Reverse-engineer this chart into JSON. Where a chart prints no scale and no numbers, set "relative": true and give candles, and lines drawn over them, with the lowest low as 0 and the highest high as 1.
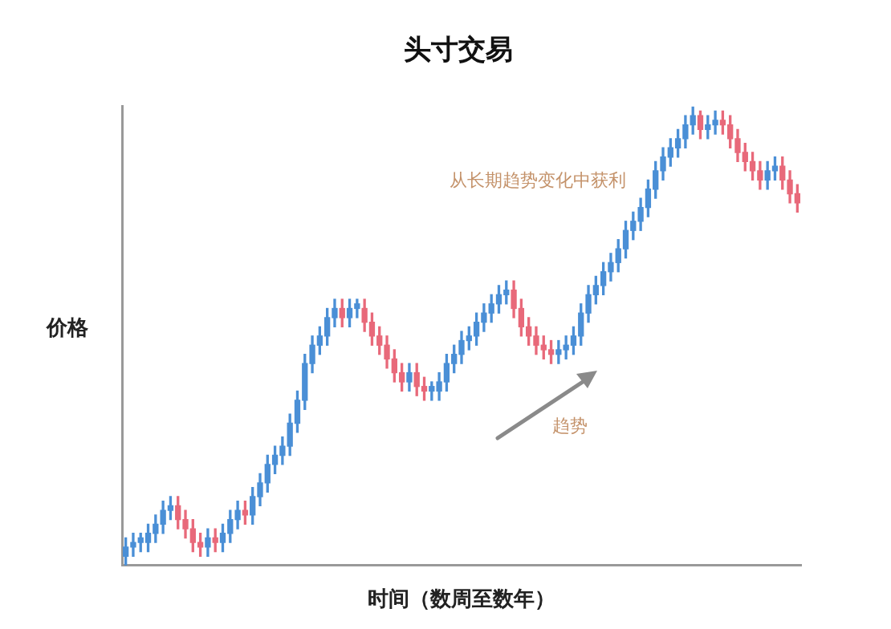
{
  "chart_data": {
    "type": "candlestick",
    "title": "头寸交易",
    "xlabel": "时间（数周至数年）",
    "ylabel": "价格",
    "relative": true,
    "annotations": [
      "从长期趋势变化中获利",
      "趋势"
    ],
    "colors": [
      "#4a8fd6",
      "#4a8fd6",
      "#4a8fd6",
      "#4a8fd6",
      "#4a8fd6",
      "#4a8fd6",
      "#4a8fd6",
      "#e8697a",
      "#e8697a",
      "#e8697a",
      "#e8697a",
      "#4a8fd6",
      "#e8697a",
      "#4a8fd6",
      "#4a8fd6",
      "#4a8fd6",
      "#e8697a",
      "#4a8fd6",
      "#4a8fd6",
      "#4a8fd6",
      "#4a8fd6",
      "#4a8fd6",
      "#4a8fd6",
      "#4a8fd6",
      "#4a8fd6",
      "#4a8fd6",
      "#4a8fd6",
      "#4a8fd6",
      "#4a8fd6",
      "#e8697a",
      "#4a8fd6",
      "#4a8fd6",
      "#e8697a",
      "#e8697a",
      "#e8697a",
      "#e8697a",
      "#e8697a",
      "#e8697a",
      "#4a8fd6",
      "#e8697a",
      "#e8697a",
      "#4a8fd6",
      "#4a8fd6",
      "#4a8fd6",
      "#4a8fd6",
      "#4a8fd6",
      "#4a8fd6",
      "#4a8fd6",
      "#4a8fd6",
      "#4a8fd6",
      "#4a8fd6",
      "#4a8fd6",
      "#e8697a",
      "#e8697a",
      "#e8697a",
      "#e8697a",
      "#e8697a",
      "#e8697a",
      "#4a8fd6",
      "#4a8fd6",
      "#4a8fd6",
      "#4a8fd6",
      "#4a8fd6",
      "#4a8fd6",
      "#4a8fd6",
      "#4a8fd6",
      "#4a8fd6",
      "#4a8fd6",
      "#4a8fd6",
      "#4a8fd6",
      "#4a8fd6",
      "#4a8fd6",
      "#4a8fd6",
      "#4a8fd6",
      "#4a8fd6",
      "#4a8fd6",
      "#4a8fd6",
      "#e8697a",
      "#4a8fd6",
      "#4a8fd6",
      "#e8697a",
      "#e8697a",
      "#e8697a",
      "#e8697a",
      "#e8697a",
      "#e8697a",
      "#4a8fd6",
      "#4a8fd6",
      "#e8697a",
      "#e8697a",
      "#e8697a"
    ],
    "categories": [
      null,
      null,
      null,
      null,
      null,
      null,
      null,
      null,
      null,
      null,
      null,
      null,
      null,
      null,
      null,
      null,
      null,
      null,
      null,
      null,
      null,
      null,
      null,
      null,
      null,
      null,
      null,
      null,
      null,
      null,
      null,
      null,
      null,
      null,
      null,
      null,
      null,
      null,
      null,
      null,
      null,
      null,
      null,
      null,
      null,
      null,
      null,
      null,
      null,
      null,
      null,
      null,
      null,
      null,
      null,
      null,
      null,
      null,
      null,
      null,
      null,
      null,
      null,
      null,
      null,
      null,
      null,
      null,
      null,
      null,
      null,
      null,
      null,
      null,
      null,
      null,
      null,
      null,
      null,
      null,
      null,
      null,
      null,
      null,
      null,
      null,
      null,
      null,
      null,
      null,
      null
    ],
    "ohlc": [
      [
        0.02,
        0.06,
        0,
        0.04
      ],
      [
        0.04,
        0.07,
        0.02,
        0.05
      ],
      [
        0.05,
        0.07,
        0.03,
        0.06
      ],
      [
        0.05,
        0.09,
        0.03,
        0.07
      ],
      [
        0.07,
        0.11,
        0.05,
        0.09
      ],
      [
        0.09,
        0.14,
        0.07,
        0.12
      ],
      [
        0.12,
        0.15,
        0.1,
        0.13
      ],
      [
        0.13,
        0.15,
        0.08,
        0.1
      ],
      [
        0.1,
        0.12,
        0.06,
        0.08
      ],
      [
        0.08,
        0.1,
        0.03,
        0.05
      ],
      [
        0.05,
        0.07,
        0.02,
        0.04
      ],
      [
        0.04,
        0.08,
        0.02,
        0.06
      ],
      [
        0.06,
        0.08,
        0.03,
        0.05
      ],
      [
        0.05,
        0.09,
        0.03,
        0.07
      ],
      [
        0.07,
        0.12,
        0.05,
        0.1
      ],
      [
        0.1,
        0.14,
        0.08,
        0.12
      ],
      [
        0.12,
        0.14,
        0.09,
        0.11
      ],
      [
        0.11,
        0.17,
        0.09,
        0.15
      ],
      [
        0.15,
        0.2,
        0.13,
        0.18
      ],
      [
        0.18,
        0.24,
        0.16,
        0.22
      ],
      [
        0.22,
        0.26,
        0.2,
        0.24
      ],
      [
        0.24,
        0.28,
        0.22,
        0.26
      ],
      [
        0.26,
        0.33,
        0.24,
        0.31
      ],
      [
        0.31,
        0.38,
        0.29,
        0.36
      ],
      [
        0.36,
        0.46,
        0.34,
        0.44
      ],
      [
        0.44,
        0.5,
        0.42,
        0.48
      ],
      [
        0.48,
        0.52,
        0.46,
        0.5
      ],
      [
        0.5,
        0.56,
        0.48,
        0.54
      ],
      [
        0.54,
        0.58,
        0.52,
        0.56
      ],
      [
        0.56,
        0.58,
        0.52,
        0.54
      ],
      [
        0.54,
        0.58,
        0.52,
        0.56
      ],
      [
        0.56,
        0.58,
        0.54,
        0.57
      ],
      [
        0.56,
        0.58,
        0.51,
        0.53
      ],
      [
        0.53,
        0.55,
        0.48,
        0.5
      ],
      [
        0.5,
        0.52,
        0.46,
        0.48
      ],
      [
        0.48,
        0.5,
        0.43,
        0.45
      ],
      [
        0.45,
        0.47,
        0.4,
        0.42
      ],
      [
        0.42,
        0.44,
        0.38,
        0.4
      ],
      [
        0.4,
        0.44,
        0.38,
        0.42
      ],
      [
        0.42,
        0.44,
        0.37,
        0.39
      ],
      [
        0.39,
        0.41,
        0.36,
        0.38
      ],
      [
        0.38,
        0.4,
        0.36,
        0.39
      ],
      [
        0.38,
        0.42,
        0.36,
        0.4
      ],
      [
        0.4,
        0.46,
        0.38,
        0.44
      ],
      [
        0.44,
        0.48,
        0.42,
        0.46
      ],
      [
        0.46,
        0.51,
        0.44,
        0.49
      ],
      [
        0.49,
        0.52,
        0.47,
        0.5
      ],
      [
        0.5,
        0.55,
        0.48,
        0.53
      ],
      [
        0.53,
        0.57,
        0.51,
        0.55
      ],
      [
        0.55,
        0.59,
        0.53,
        0.57
      ],
      [
        0.57,
        0.61,
        0.55,
        0.59
      ],
      [
        0.59,
        0.62,
        0.57,
        0.6
      ],
      [
        0.6,
        0.62,
        0.54,
        0.56
      ],
      [
        0.56,
        0.58,
        0.5,
        0.52
      ],
      [
        0.52,
        0.54,
        0.48,
        0.5
      ],
      [
        0.5,
        0.52,
        0.46,
        0.48
      ],
      [
        0.48,
        0.5,
        0.45,
        0.47
      ],
      [
        0.47,
        0.49,
        0.44,
        0.46
      ],
      [
        0.46,
        0.49,
        0.44,
        0.47
      ],
      [
        0.47,
        0.5,
        0.45,
        0.48
      ],
      [
        0.48,
        0.52,
        0.46,
        0.5
      ],
      [
        0.5,
        0.57,
        0.48,
        0.55
      ],
      [
        0.55,
        0.61,
        0.53,
        0.59
      ],
      [
        0.59,
        0.63,
        0.57,
        0.61
      ],
      [
        0.61,
        0.66,
        0.59,
        0.64
      ],
      [
        0.64,
        0.68,
        0.62,
        0.66
      ],
      [
        0.66,
        0.71,
        0.64,
        0.69
      ],
      [
        0.69,
        0.75,
        0.67,
        0.73
      ],
      [
        0.73,
        0.77,
        0.71,
        0.75
      ],
      [
        0.75,
        0.8,
        0.73,
        0.78
      ],
      [
        0.78,
        0.84,
        0.76,
        0.82
      ],
      [
        0.82,
        0.88,
        0.8,
        0.86
      ],
      [
        0.86,
        0.91,
        0.84,
        0.89
      ],
      [
        0.89,
        0.93,
        0.87,
        0.91
      ],
      [
        0.91,
        0.95,
        0.89,
        0.93
      ],
      [
        0.93,
        0.98,
        0.91,
        0.96
      ],
      [
        0.96,
        1.0,
        0.94,
        0.98
      ],
      [
        0.98,
        0.99,
        0.93,
        0.95
      ],
      [
        0.95,
        0.98,
        0.93,
        0.96
      ],
      [
        0.96,
        0.99,
        0.94,
        0.97
      ],
      [
        0.97,
        0.99,
        0.94,
        0.96
      ],
      [
        0.96,
        0.98,
        0.91,
        0.93
      ],
      [
        0.93,
        0.95,
        0.88,
        0.9
      ],
      [
        0.9,
        0.92,
        0.86,
        0.88
      ],
      [
        0.88,
        0.9,
        0.84,
        0.86
      ],
      [
        0.86,
        0.88,
        0.82,
        0.84
      ],
      [
        0.84,
        0.88,
        0.82,
        0.86
      ],
      [
        0.86,
        0.89,
        0.84,
        0.87
      ],
      [
        0.87,
        0.89,
        0.82,
        0.84
      ],
      [
        0.84,
        0.86,
        0.79,
        0.81
      ],
      [
        0.81,
        0.83,
        0.77,
        0.79
      ]
    ]
  }
}
